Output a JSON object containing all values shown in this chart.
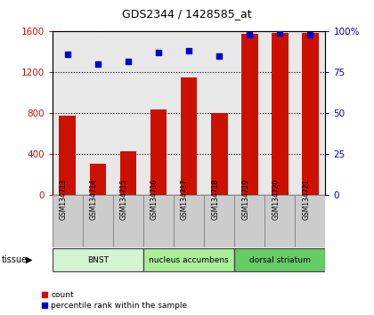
{
  "title": "GDS2344 / 1428585_at",
  "samples": [
    "GSM134713",
    "GSM134714",
    "GSM134715",
    "GSM134716",
    "GSM134717",
    "GSM134718",
    "GSM134719",
    "GSM134720",
    "GSM134721"
  ],
  "counts": [
    780,
    310,
    430,
    840,
    1150,
    800,
    1580,
    1590,
    1590
  ],
  "percentiles": [
    86,
    80,
    82,
    87,
    88,
    85,
    98,
    99,
    98
  ],
  "tissues": [
    {
      "label": "BNST",
      "start": 0,
      "end": 3
    },
    {
      "label": "nucleus accumbens",
      "start": 3,
      "end": 6
    },
    {
      "label": "dorsal striatum",
      "start": 6,
      "end": 9
    }
  ],
  "tissue_colors": [
    "#d4f5d4",
    "#aaee99",
    "#66cc66"
  ],
  "bar_color": "#cc1100",
  "dot_color": "#0000cc",
  "ylim_left": [
    0,
    1600
  ],
  "ylim_right": [
    0,
    100
  ],
  "yticks_left": [
    0,
    400,
    800,
    1200,
    1600
  ],
  "yticks_right": [
    0,
    25,
    50,
    75,
    100
  ],
  "plot_bg": "#e8e8e8",
  "title_fontsize": 9
}
